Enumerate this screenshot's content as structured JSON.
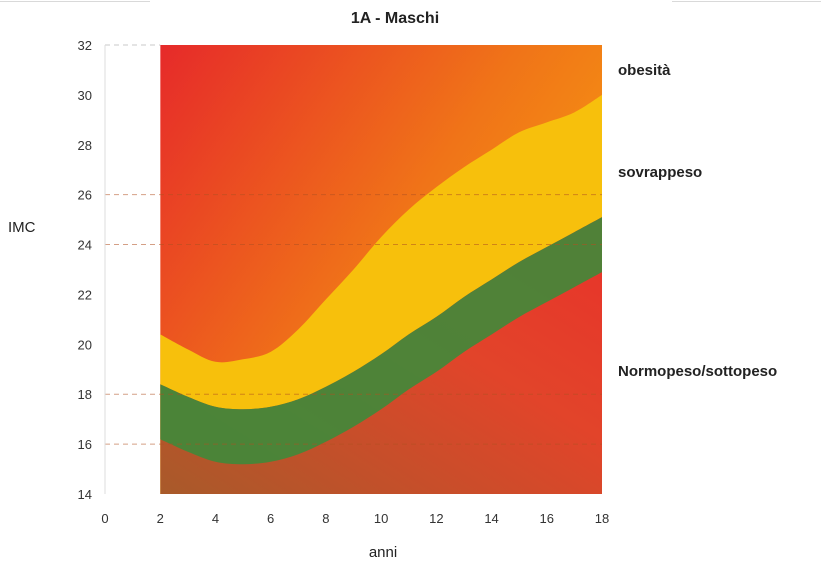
{
  "chart_data": {
    "type": "area",
    "title": "1A - Maschi",
    "xlabel": "anni",
    "ylabel": "IMC",
    "xlim": [
      0,
      18
    ],
    "ylim": [
      14,
      32
    ],
    "x_ticks": [
      "0",
      "2",
      "4",
      "6",
      "8",
      "10",
      "12",
      "14",
      "16",
      "18"
    ],
    "y_ticks": [
      "14",
      "16",
      "18",
      "20",
      "22",
      "24",
      "26",
      "28",
      "30",
      "32"
    ],
    "dashed_gridlines_y": [
      16,
      18,
      24,
      26,
      32
    ],
    "x": [
      2,
      3,
      4,
      5,
      6,
      7,
      8,
      9,
      10,
      11,
      12,
      13,
      14,
      15,
      16,
      17,
      18
    ],
    "series": [
      {
        "name": "sovrappeso",
        "values": [
          18.4,
          17.9,
          17.5,
          17.4,
          17.5,
          17.8,
          18.3,
          18.9,
          19.6,
          20.4,
          21.1,
          21.9,
          22.6,
          23.3,
          23.9,
          24.5,
          25.1
        ]
      },
      {
        "name": "obesità",
        "values": [
          20.4,
          19.8,
          19.3,
          19.4,
          19.7,
          20.6,
          21.8,
          23.0,
          24.3,
          25.4,
          26.3,
          27.1,
          27.8,
          28.5,
          28.9,
          29.3,
          30.0
        ]
      }
    ],
    "zone_labels": [
      "obesità",
      "sovrappeso",
      "Normopeso/sottopeso"
    ],
    "colors": {
      "obesita_zone": [
        "#e82a2a",
        "#f07a18",
        "#f7a011"
      ],
      "sovrappeso_zone": "#f7c00c",
      "normopeso_band": "#3f8a3a",
      "normopeso_zone": [
        "#b0582a",
        "#e33a28"
      ]
    }
  }
}
